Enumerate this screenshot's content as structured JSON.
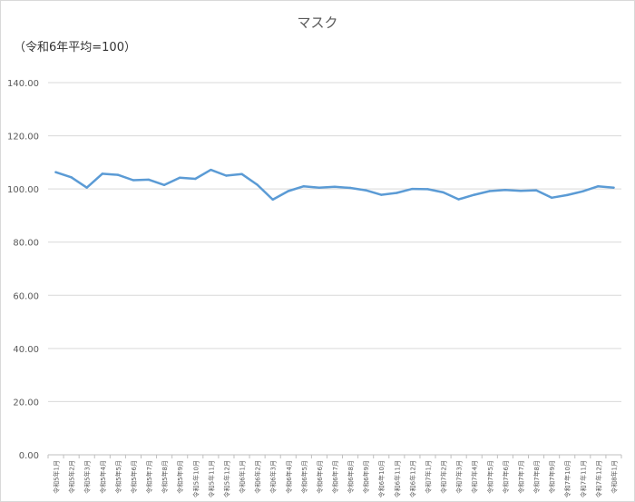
{
  "chart_data": {
    "type": "line",
    "title": "マスク",
    "unit_label": "（令和6年平均=100）",
    "ylim": [
      0,
      140
    ],
    "yticks": [
      "0.00",
      "20.00",
      "40.00",
      "60.00",
      "80.00",
      "100.00",
      "120.00",
      "140.00"
    ],
    "grid": true,
    "legend": "none",
    "line_color": "#5b9bd5",
    "categories": [
      "令和5年1月",
      "令和5年2月",
      "令和5年3月",
      "令和5年4月",
      "令和5年5月",
      "令和5年6月",
      "令和5年7月",
      "令和5年8月",
      "令和5年9月",
      "令和5年10月",
      "令和5年11月",
      "令和5年12月",
      "令和6年1月",
      "令和6年2月",
      "令和6年3月",
      "令和6年4月",
      "令和6年5月",
      "令和6年6月",
      "令和6年7月",
      "令和6年8月",
      "令和6年9月",
      "令和6年10月",
      "令和6年11月",
      "令和6年12月",
      "令和7年1月",
      "令和7年2月",
      "令和7年3月",
      "令和7年4月",
      "令和7年5月",
      "令和7年6月",
      "令和7年7月",
      "令和7年8月",
      "令和7年9月",
      "令和7年10月",
      "令和7年11月",
      "令和7年12月",
      "令和8年1月"
    ],
    "values": [
      106.3,
      104.4,
      100.5,
      105.7,
      105.3,
      103.3,
      103.5,
      101.5,
      104.2,
      103.8,
      107.2,
      105.0,
      105.6,
      101.6,
      96.0,
      99.2,
      101.0,
      100.5,
      100.8,
      100.4,
      99.5,
      97.8,
      98.5,
      100.0,
      99.9,
      98.7,
      96.1,
      97.8,
      99.2,
      99.6,
      99.3,
      99.5,
      96.7,
      97.7,
      99.1,
      101.0,
      100.5
    ]
  }
}
